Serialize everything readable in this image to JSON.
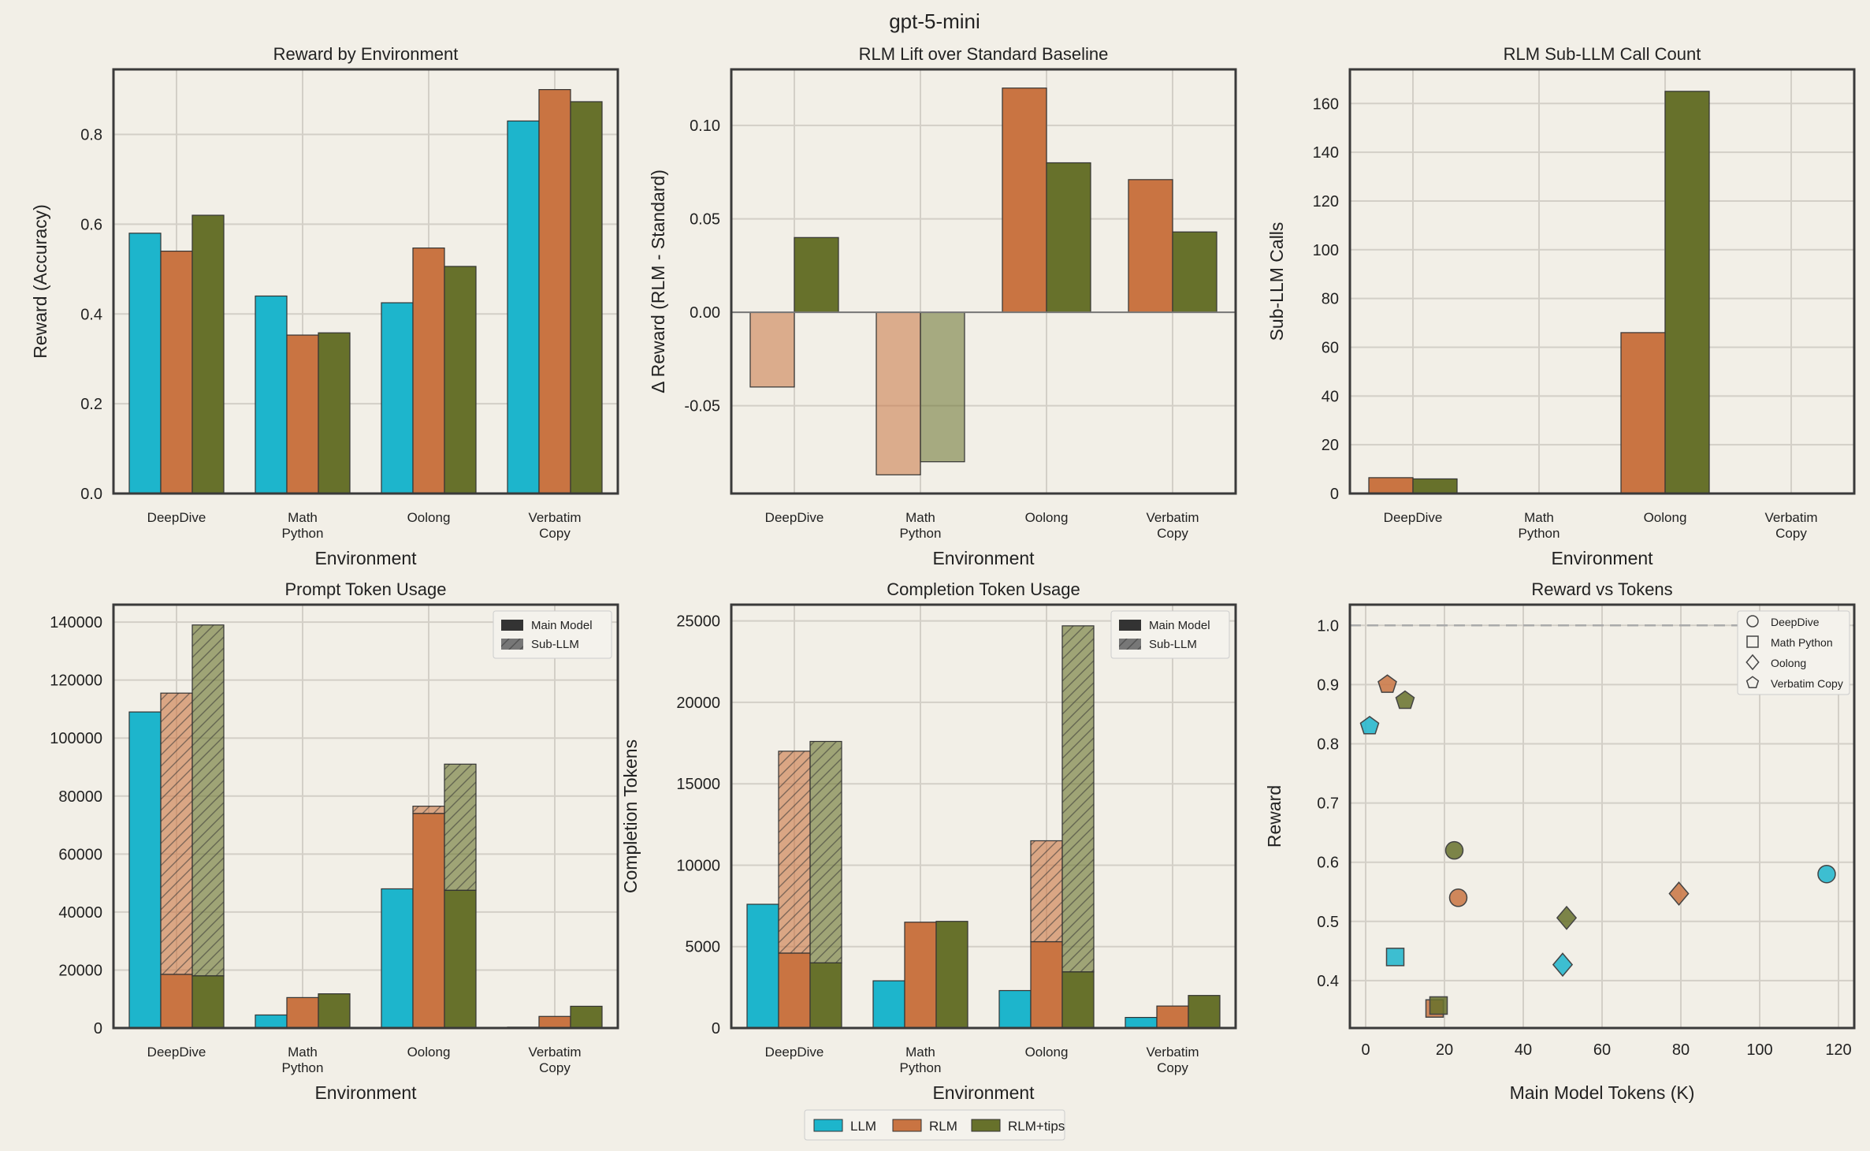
{
  "suptitle": "gpt-5-mini",
  "colors": {
    "LLM": "#1db5cc",
    "RLM": "#c97442",
    "RLM+tips": "#67712b",
    "background": "#f2efe7"
  },
  "legend": {
    "entries": [
      "LLM",
      "RLM",
      "RLM+tips"
    ],
    "placement": "bottom-center"
  },
  "chart_data": [
    {
      "type": "bar",
      "title": "Reward by Environment",
      "xlabel": "Environment",
      "ylabel": "Reward (Accuracy)",
      "categories": [
        "DeepDive",
        "Math\nPython",
        "Oolong",
        "Verbatim\nCopy"
      ],
      "ylim": [
        0,
        0.945
      ],
      "yticks": [
        0.0,
        0.2,
        0.4,
        0.6,
        0.8
      ],
      "tick_decimals": 1,
      "grid": true,
      "series": [
        {
          "name": "LLM",
          "values": [
            0.58,
            0.44,
            0.425,
            0.83
          ]
        },
        {
          "name": "RLM",
          "values": [
            0.54,
            0.353,
            0.547,
            0.9
          ]
        },
        {
          "name": "RLM+tips",
          "values": [
            0.62,
            0.358,
            0.506,
            0.873
          ]
        }
      ]
    },
    {
      "type": "bar",
      "title": "RLM Lift over Standard Baseline",
      "xlabel": "Environment",
      "ylabel": "Δ Reward (RLM - Standard)",
      "categories": [
        "DeepDive",
        "Math\nPython",
        "Oolong",
        "Verbatim\nCopy"
      ],
      "ylim": [
        -0.097,
        0.13
      ],
      "yticks": [
        -0.05,
        0.0,
        0.05,
        0.1
      ],
      "tick_labels": [
        "-0.05",
        "0.00",
        "0.05",
        "0.10"
      ],
      "grid": true,
      "zero_line": true,
      "series": [
        {
          "name": "RLM",
          "values": [
            -0.04,
            -0.087,
            0.12,
            0.071
          ]
        },
        {
          "name": "RLM+tips",
          "values": [
            0.04,
            -0.08,
            0.08,
            0.043
          ]
        }
      ]
    },
    {
      "type": "bar",
      "title": "RLM Sub-LLM Call Count",
      "xlabel": "Environment",
      "ylabel": "Sub-LLM Calls",
      "categories": [
        "DeepDive",
        "Math\nPython",
        "Oolong",
        "Verbatim\nCopy"
      ],
      "ylim": [
        0,
        174
      ],
      "yticks": [
        0,
        20,
        40,
        60,
        80,
        100,
        120,
        140,
        160
      ],
      "grid": true,
      "series": [
        {
          "name": "RLM",
          "values": [
            6.5,
            0,
            66,
            0
          ]
        },
        {
          "name": "RLM+tips",
          "values": [
            6,
            0,
            165,
            0
          ]
        }
      ]
    },
    {
      "type": "bar",
      "stacked": true,
      "title": "Prompt Token Usage",
      "xlabel": "Environment",
      "ylabel": "Prompt Tokens",
      "categories": [
        "DeepDive",
        "Math\nPython",
        "Oolong",
        "Verbatim\nCopy"
      ],
      "ylim": [
        0,
        146000
      ],
      "yticks": [
        0,
        20000,
        40000,
        60000,
        80000,
        100000,
        120000,
        140000
      ],
      "grid": true,
      "stack_legend": [
        "Main Model",
        "Sub-LLM"
      ],
      "stack_legend_placement": "top-right",
      "series": [
        {
          "name": "LLM",
          "main": [
            109000,
            4500,
            48000,
            300
          ],
          "sub": [
            0,
            0,
            0,
            0
          ]
        },
        {
          "name": "RLM",
          "main": [
            18500,
            10500,
            74000,
            4000
          ],
          "sub": [
            97000,
            0,
            2500,
            0
          ]
        },
        {
          "name": "RLM+tips",
          "main": [
            18000,
            11800,
            47500,
            7500
          ],
          "sub": [
            121000,
            0,
            43500,
            0
          ]
        }
      ]
    },
    {
      "type": "bar",
      "stacked": true,
      "title": "Completion Token Usage",
      "xlabel": "Environment",
      "ylabel": "Completion Tokens",
      "categories": [
        "DeepDive",
        "Math\nPython",
        "Oolong",
        "Verbatim\nCopy"
      ],
      "ylim": [
        0,
        26000
      ],
      "yticks": [
        0,
        5000,
        10000,
        15000,
        20000,
        25000
      ],
      "grid": true,
      "stack_legend": [
        "Main Model",
        "Sub-LLM"
      ],
      "stack_legend_placement": "top-right",
      "series": [
        {
          "name": "LLM",
          "main": [
            7600,
            2900,
            2300,
            650
          ],
          "sub": [
            0,
            0,
            0,
            0
          ]
        },
        {
          "name": "RLM",
          "main": [
            4600,
            6500,
            5300,
            1350
          ],
          "sub": [
            12400,
            0,
            6200,
            0
          ]
        },
        {
          "name": "RLM+tips",
          "main": [
            4000,
            6550,
            3450,
            2000
          ],
          "sub": [
            13600,
            0,
            21250,
            0
          ]
        }
      ]
    },
    {
      "type": "scatter",
      "title": "Reward vs Tokens",
      "xlabel": "Main Model Tokens (K)",
      "ylabel": "Reward",
      "xlim": [
        -4,
        124
      ],
      "ylim": [
        0.32,
        1.035
      ],
      "xticks": [
        0,
        20,
        40,
        60,
        80,
        100,
        120
      ],
      "yticks": [
        0.4,
        0.5,
        0.6,
        0.7,
        0.8,
        0.9,
        1.0
      ],
      "tick_decimals": 1,
      "grid": true,
      "reference_line_y": 1.0,
      "marker_legend": [
        {
          "label": "DeepDive",
          "marker": "circle"
        },
        {
          "label": "Math Python",
          "marker": "square"
        },
        {
          "label": "Oolong",
          "marker": "diamond"
        },
        {
          "label": "Verbatim Copy",
          "marker": "pentagon"
        }
      ],
      "marker_legend_placement": "top-right",
      "points": [
        {
          "series": "LLM",
          "env": "DeepDive",
          "x": 117,
          "y": 0.58
        },
        {
          "series": "LLM",
          "env": "Math Python",
          "x": 7.5,
          "y": 0.44
        },
        {
          "series": "LLM",
          "env": "Oolong",
          "x": 50,
          "y": 0.427
        },
        {
          "series": "LLM",
          "env": "Verbatim Copy",
          "x": 1,
          "y": 0.83
        },
        {
          "series": "RLM",
          "env": "DeepDive",
          "x": 23.5,
          "y": 0.54
        },
        {
          "series": "RLM",
          "env": "Math Python",
          "x": 17.5,
          "y": 0.353
        },
        {
          "series": "RLM",
          "env": "Oolong",
          "x": 79.5,
          "y": 0.547
        },
        {
          "series": "RLM",
          "env": "Verbatim Copy",
          "x": 5.5,
          "y": 0.9
        },
        {
          "series": "RLM+tips",
          "env": "DeepDive",
          "x": 22.5,
          "y": 0.62
        },
        {
          "series": "RLM+tips",
          "env": "Math Python",
          "x": 18.5,
          "y": 0.358
        },
        {
          "series": "RLM+tips",
          "env": "Oolong",
          "x": 51,
          "y": 0.506
        },
        {
          "series": "RLM+tips",
          "env": "Verbatim Copy",
          "x": 10,
          "y": 0.873
        }
      ]
    }
  ]
}
